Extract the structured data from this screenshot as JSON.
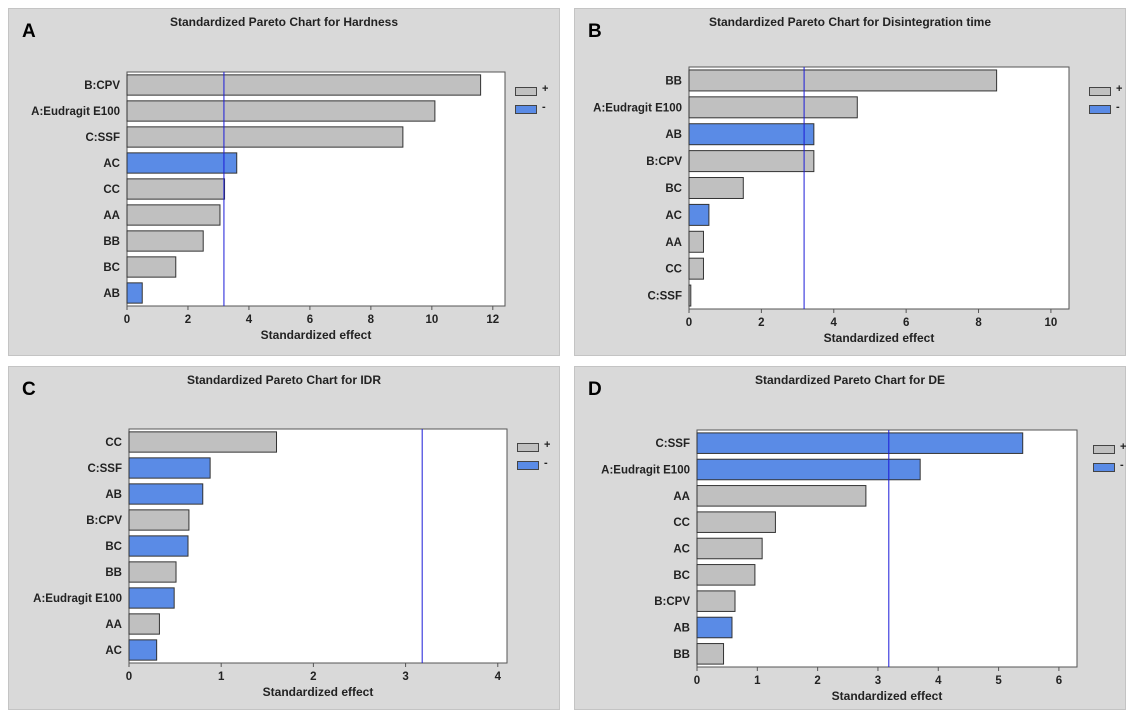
{
  "chart_data": [
    {
      "type": "bar",
      "panel_label": "A",
      "title": "Standardized Pareto Chart for Hardness",
      "xlabel": "Standardized effect",
      "xlim": [
        0,
        12.4
      ],
      "xticks": [
        0,
        2,
        4,
        6,
        8,
        10,
        12
      ],
      "reference_line": 3.18,
      "categories": [
        "B:CPV",
        "A:Eudragit E100",
        "C:SSF",
        "AC",
        "CC",
        "AA",
        "BB",
        "BC",
        "AB"
      ],
      "values": [
        11.6,
        10.1,
        9.05,
        3.6,
        3.2,
        3.05,
        2.5,
        1.6,
        0.5
      ],
      "signs": [
        "+",
        "+",
        "+",
        "-",
        "+",
        "+",
        "+",
        "+",
        "-"
      ],
      "legend": [
        {
          "label": "+",
          "color": "#c0c0c0"
        },
        {
          "label": "-",
          "color": "#5a8be6"
        }
      ]
    },
    {
      "type": "bar",
      "panel_label": "B",
      "title": "Standardized Pareto Chart for Disintegration time",
      "xlabel": "Standardized effect",
      "xlim": [
        0,
        10.5
      ],
      "xticks": [
        0,
        2,
        4,
        6,
        8,
        10
      ],
      "reference_line": 3.18,
      "categories": [
        "BB",
        "A:Eudragit E100",
        "AB",
        "B:CPV",
        "BC",
        "AC",
        "AA",
        "CC",
        "C:SSF"
      ],
      "values": [
        8.5,
        4.65,
        3.45,
        3.45,
        1.5,
        0.55,
        0.4,
        0.4,
        0.05
      ],
      "signs": [
        "+",
        "+",
        "-",
        "+",
        "+",
        "-",
        "+",
        "+",
        "+"
      ],
      "legend": [
        {
          "label": "+",
          "color": "#c0c0c0"
        },
        {
          "label": "-",
          "color": "#5a8be6"
        }
      ]
    },
    {
      "type": "bar",
      "panel_label": "C",
      "title": "Standardized Pareto Chart for IDR",
      "xlabel": "Standardized effect",
      "xlim": [
        0,
        4.1
      ],
      "xticks": [
        0,
        1,
        2,
        3,
        4
      ],
      "reference_line": 3.18,
      "categories": [
        "CC",
        "C:SSF",
        "AB",
        "B:CPV",
        "BC",
        "BB",
        "A:Eudragit E100",
        "AA",
        "AC"
      ],
      "values": [
        1.6,
        0.88,
        0.8,
        0.65,
        0.64,
        0.51,
        0.49,
        0.33,
        0.3
      ],
      "signs": [
        "+",
        "-",
        "-",
        "+",
        "-",
        "+",
        "-",
        "+",
        "-"
      ],
      "legend": [
        {
          "label": "+",
          "color": "#c0c0c0"
        },
        {
          "label": "-",
          "color": "#5a8be6"
        }
      ]
    },
    {
      "type": "bar",
      "panel_label": "D",
      "title": "Standardized Pareto Chart for DE",
      "xlabel": "Standardized effect",
      "xlim": [
        0,
        6.3
      ],
      "xticks": [
        0,
        1,
        2,
        3,
        4,
        5,
        6
      ],
      "reference_line": 3.18,
      "categories": [
        "C:SSF",
        "A:Eudragit E100",
        "AA",
        "CC",
        "AC",
        "BC",
        "B:CPV",
        "AB",
        "BB"
      ],
      "values": [
        5.4,
        3.7,
        2.8,
        1.3,
        1.08,
        0.96,
        0.63,
        0.58,
        0.44
      ],
      "signs": [
        "-",
        "-",
        "+",
        "+",
        "+",
        "+",
        "+",
        "-",
        "+"
      ],
      "legend": [
        {
          "label": "+",
          "color": "#c0c0c0"
        },
        {
          "label": "-",
          "color": "#5a8be6"
        }
      ]
    }
  ]
}
